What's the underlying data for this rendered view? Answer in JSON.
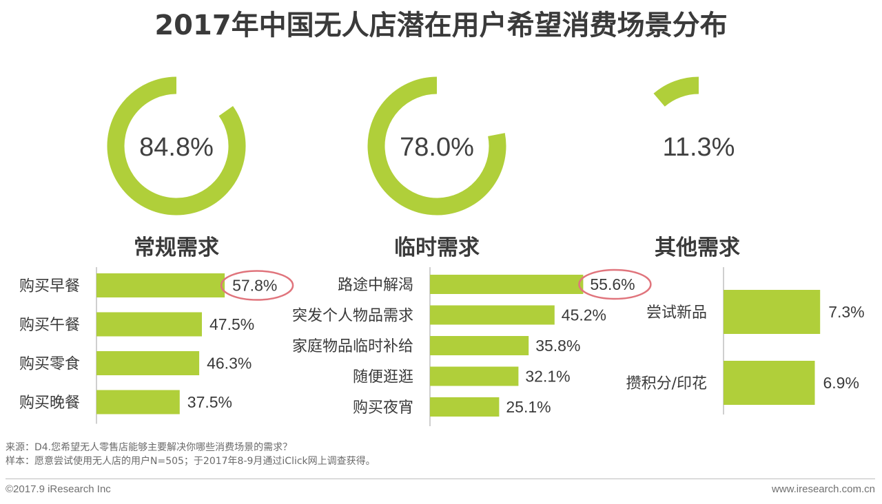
{
  "title": "2017年中国无人店潜在用户希望消费场景分布",
  "colors": {
    "accent": "#b0cf3a",
    "track": "#ffffff",
    "highlight_circle": "#e0747c",
    "text": "#3a3a3a"
  },
  "chart_data": [
    {
      "type": "pie",
      "subtype": "donut",
      "title": "常规需求",
      "value": 84.8,
      "value_label": "84.8%"
    },
    {
      "type": "pie",
      "subtype": "donut",
      "title": "临时需求",
      "value": 78.0,
      "value_label": "78.0%"
    },
    {
      "type": "pie",
      "subtype": "donut",
      "title": "其他需求",
      "value": 11.3,
      "value_label": "11.3%"
    },
    {
      "type": "bar",
      "orientation": "horizontal",
      "group": "常规需求",
      "categories": [
        "购买早餐",
        "购买午餐",
        "购买零食",
        "购买晚餐"
      ],
      "values": [
        57.8,
        47.5,
        46.3,
        37.5
      ],
      "value_labels": [
        "57.8%",
        "47.5%",
        "46.3%",
        "37.5%"
      ],
      "highlighted": "57.8%"
    },
    {
      "type": "bar",
      "orientation": "horizontal",
      "group": "临时需求",
      "categories": [
        "路途中解渴",
        "突发个人物品需求",
        "家庭物品临时补给",
        "随便逛逛",
        "购买夜宵"
      ],
      "values": [
        55.6,
        45.2,
        35.8,
        32.1,
        25.1
      ],
      "value_labels": [
        "55.6%",
        "45.2%",
        "35.8%",
        "32.1%",
        "25.1%"
      ],
      "highlighted": "55.6%"
    },
    {
      "type": "bar",
      "orientation": "horizontal",
      "group": "其他需求",
      "categories": [
        "尝试新品",
        "攒积分/印花"
      ],
      "values": [
        7.3,
        6.9
      ],
      "value_labels": [
        "7.3%",
        "6.9%"
      ]
    }
  ],
  "notes": {
    "source": "来源：D4.您希望无人零售店能够主要解决你哪些消费场景的需求？",
    "sample": "样本：愿意尝试使用无人店的用户N=505；于2017年8-9月通过iClick网上调查获得。"
  },
  "footer": {
    "copyright": "©2017.9 iResearch Inc",
    "website": "www.iresearch.com.cn"
  }
}
